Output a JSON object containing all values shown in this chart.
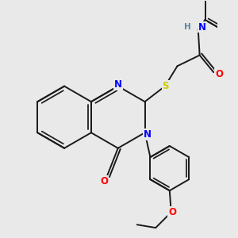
{
  "bg_color": "#e9e9e9",
  "bond_color": "#1a1a1a",
  "bond_width": 1.4,
  "atom_colors": {
    "N": "#0000ff",
    "O": "#ff0000",
    "S": "#cccc00",
    "H": "#5588aa",
    "C": "#1a1a1a"
  },
  "font_size": 8.5
}
